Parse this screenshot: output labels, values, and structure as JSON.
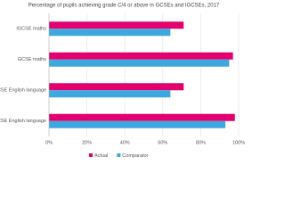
{
  "chart_data": {
    "type": "hbar",
    "title": "Percentage of pupils achieving grade C/4 or above in GCSEs and IGCSEs, 2017",
    "categories": [
      "IGCSE maths",
      "GCSE maths",
      "IGCSE English language",
      "GCSE English language"
    ],
    "series": [
      {
        "name": "Actual",
        "color": "#e2006e",
        "values": [
          71,
          97,
          71,
          98
        ]
      },
      {
        "name": "Comparator",
        "color": "#3da8df",
        "values": [
          64,
          95,
          64,
          93
        ]
      }
    ],
    "xlim": [
      0,
      100
    ],
    "xticks": [
      {
        "value": 0,
        "label": "0%"
      },
      {
        "value": 20,
        "label": "20%"
      },
      {
        "value": 40,
        "label": "40%"
      },
      {
        "value": 60,
        "label": "60%"
      },
      {
        "value": 80,
        "label": "80%"
      },
      {
        "value": 100,
        "label": "100%"
      }
    ],
    "grid": true,
    "legend": "bottom"
  }
}
